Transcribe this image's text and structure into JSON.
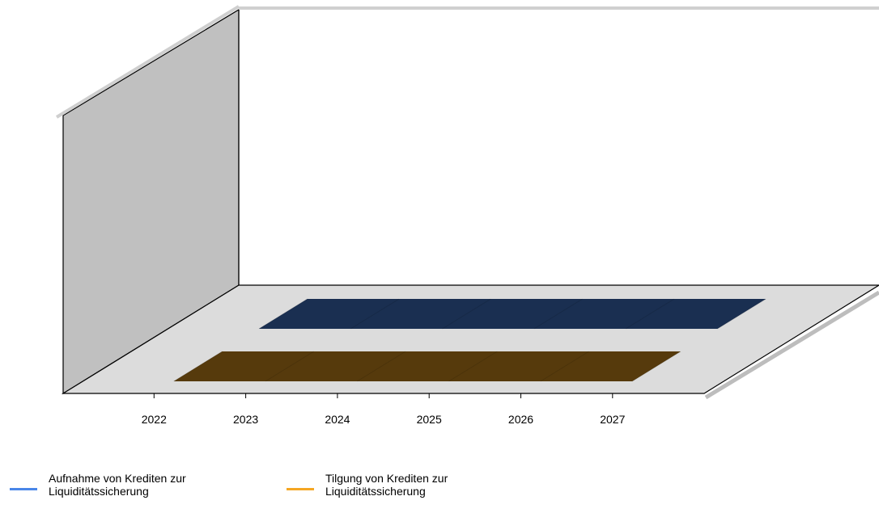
{
  "chart_data": {
    "type": "line3d",
    "categories": [
      "2022",
      "2023",
      "2024",
      "2025",
      "2026",
      "2027"
    ],
    "series": [
      {
        "name": "Aufnahme von Krediten zur Liquiditätssicherung",
        "color": "#4a86e8",
        "values": [
          0,
          0,
          0,
          0,
          0,
          0
        ]
      },
      {
        "name": "Tilgung von Krediten zur Liquiditätssicherung",
        "color": "#f5a623",
        "values": [
          0,
          0,
          0,
          0,
          0,
          0
        ]
      }
    ]
  }
}
